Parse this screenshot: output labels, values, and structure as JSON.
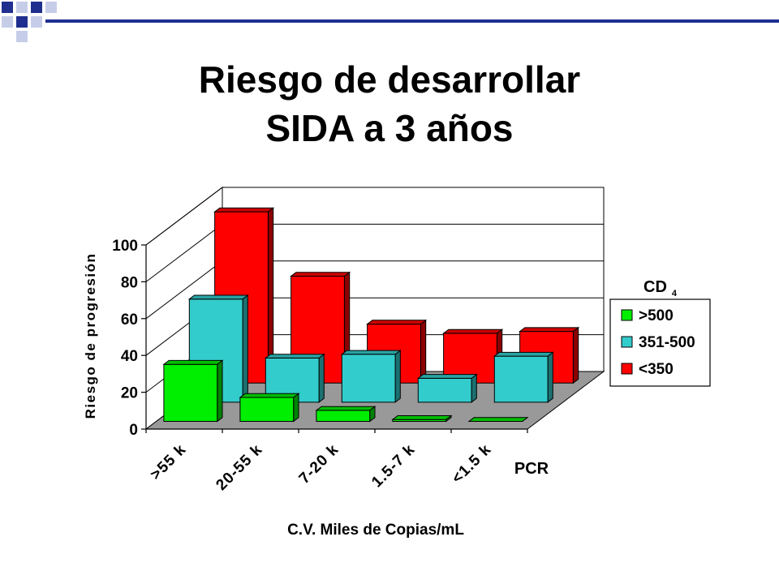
{
  "slide": {
    "title_line1": "Riesgo de desarrollar",
    "title_line2": "SIDA a 3 años"
  },
  "chart_data": {
    "type": "bar",
    "subtype": "3d-grouped",
    "title": "",
    "xlabel": "C.V.  Miles de Copias/mL",
    "ylabel": "Riesgo de progresión",
    "x_axis_end_label": "PCR",
    "categories": [
      ">55 k",
      "20-55 k",
      "7-20 k",
      "1.5-7 k",
      "<1.5 k"
    ],
    "ylim": [
      0,
      100
    ],
    "yticks": [
      0,
      20,
      40,
      60,
      80,
      100
    ],
    "legend_title": "CD",
    "legend_title_subscript": "4",
    "legend_position": "right",
    "grid": true,
    "series": [
      {
        "name": "<350",
        "color": "#ff0000",
        "values": [
          93,
          58,
          32,
          27,
          28
        ]
      },
      {
        "name": "351-500",
        "color": "#33cccc",
        "values": [
          56,
          24,
          26,
          13,
          25
        ]
      },
      {
        "name": ">500",
        "color": "#00ee00",
        "values": [
          31,
          13,
          6,
          1,
          0
        ]
      }
    ],
    "legend_order": [
      ">500",
      "351-500",
      "<350"
    ]
  }
}
